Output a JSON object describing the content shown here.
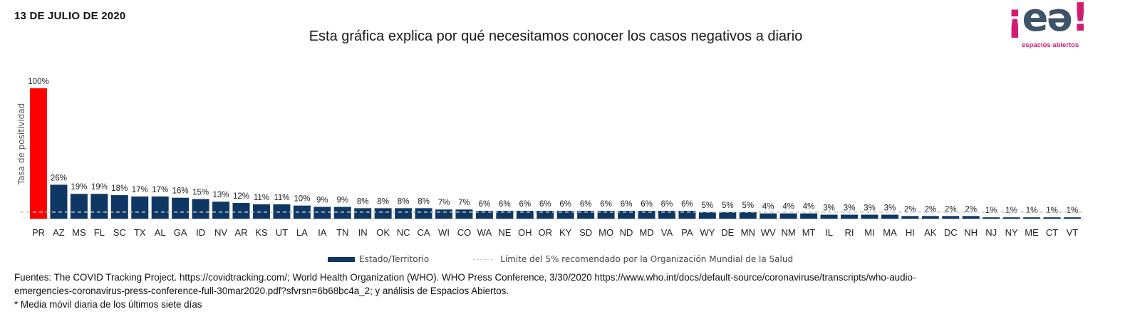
{
  "header": {
    "date": "13 DE JULIO DE 2020",
    "title": "Esta gráfica explica por qué necesitamos conocer los casos negativos a diario"
  },
  "logo": {
    "mark_parts": [
      "¡",
      "e",
      "ə",
      "!"
    ],
    "tagline": "espacios abiertos"
  },
  "legend": {
    "series_label": "Estado/Territorio",
    "line_label": "Límite del 5% recomendado por la Organización Mundial de la Salud"
  },
  "footer": {
    "line1": "Fuentes: The COVID Tracking Project. https://covidtracking.com/; World Health Organization (WHO). WHO Press Conference, 3/30/2020 https://www.who.int/docs/default-source/coronaviruse/transcripts/who-audio-",
    "line2": "emergencies-coronavirus-press-conference-full-30mar2020.pdf?sfvrsn=6b68bc4a_2; y análisis de Espacios Abiertos.",
    "line3": "* Media móvil diaria de los últimos siete días"
  },
  "colors": {
    "highlight": "#ff0000",
    "bar": "#0f3763",
    "threshold": "#c8c8c8"
  },
  "chart_data": {
    "type": "bar",
    "ylabel": "Tasa de positividad",
    "ylim": [
      0,
      100
    ],
    "threshold": 5,
    "highlight_index": 0,
    "categories": [
      "PR",
      "AZ",
      "MS",
      "FL",
      "SC",
      "TX",
      "AL",
      "GA",
      "ID",
      "NV",
      "AR",
      "KS",
      "UT",
      "LA",
      "IA",
      "TN",
      "IN",
      "OK",
      "NC",
      "CA",
      "WI",
      "CO",
      "WA",
      "NE",
      "OH",
      "OR",
      "KY",
      "SD",
      "MO",
      "ND",
      "MD",
      "VA",
      "PA",
      "WY",
      "DE",
      "MN",
      "WV",
      "NM",
      "MT",
      "IL",
      "RI",
      "MI",
      "MA",
      "HI",
      "AK",
      "DC",
      "NH",
      "NJ",
      "NY",
      "ME",
      "CT",
      "VT"
    ],
    "values": [
      100,
      26,
      19,
      19,
      18,
      17,
      17,
      16,
      15,
      13,
      12,
      11,
      11,
      10,
      9,
      9,
      8,
      8,
      8,
      8,
      7,
      7,
      6,
      6,
      6,
      6,
      6,
      6,
      6,
      6,
      6,
      6,
      6,
      5,
      5,
      5,
      4,
      4,
      4,
      3,
      3,
      3,
      3,
      2,
      2,
      2,
      2,
      1,
      1,
      1,
      1,
      1
    ],
    "value_labels": [
      "100%",
      "26%",
      "19%",
      "19%",
      "18%",
      "17%",
      "17%",
      "16%",
      "15%",
      "13%",
      "12%",
      "11%",
      "11%",
      "10%",
      "9%",
      "9%",
      "8%",
      "8%",
      "8%",
      "8%",
      "7%",
      "7%",
      "6%",
      "6%",
      "6%",
      "6%",
      "6%",
      "6%",
      "6%",
      "6%",
      "6%",
      "6%",
      "6%",
      "5%",
      "5%",
      "5%",
      "4%",
      "4%",
      "4%",
      "3%",
      "3%",
      "3%",
      "3%",
      "2%",
      "2%",
      "2%",
      "2%",
      "1%",
      "1%",
      "1%",
      "1%",
      "1%"
    ],
    "legend": [
      "Estado/Territorio",
      "Límite del 5% recomendado por la Organización Mundial de la Salud"
    ],
    "grid": false
  }
}
